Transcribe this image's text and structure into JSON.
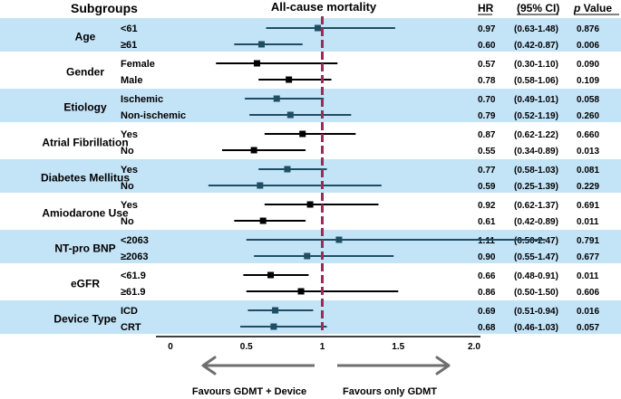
{
  "headers": {
    "subgroups": "Subgroups",
    "title": "All-cause mortality",
    "hr": "HR",
    "ci": "(95% CI)",
    "p_prefix": "p",
    "p_suffix": " Value"
  },
  "footer": {
    "left_label": "Favours  GDMT + Device",
    "right_label": "Favours only GDMT"
  },
  "colors": {
    "band": "#c3e3f7",
    "ink": "#000000",
    "teal": "#1f4e64",
    "reference_line": "#9b2c58",
    "arrow": "#6f6f6f"
  },
  "chart_data": {
    "type": "forest",
    "title": "All-cause mortality",
    "xlim": [
      0,
      2.0
    ],
    "x_ticks": [
      0,
      0.5,
      1,
      1.5,
      2.0
    ],
    "x_tick_labels": [
      "0",
      "0.5",
      "1",
      "1.5",
      "2.0"
    ],
    "reference_value": 1,
    "groups": [
      {
        "name": "Age",
        "shaded": true,
        "rows": [
          {
            "label": "<61",
            "hr": 0.97,
            "lo": 0.63,
            "hi": 1.48,
            "hr_text": "0.97",
            "ci_text": "(0.63-1.48)",
            "p_text": "0.876"
          },
          {
            "label": "≥61",
            "hr": 0.6,
            "lo": 0.42,
            "hi": 0.87,
            "hr_text": "0.60",
            "ci_text": "(0.42-0.87)",
            "p_text": "0.006"
          }
        ]
      },
      {
        "name": "Gender",
        "shaded": false,
        "rows": [
          {
            "label": "Female",
            "hr": 0.57,
            "lo": 0.3,
            "hi": 1.1,
            "hr_text": "0.57",
            "ci_text": "(0.30-1.10)",
            "p_text": "0.090"
          },
          {
            "label": "Male",
            "hr": 0.78,
            "lo": 0.58,
            "hi": 1.06,
            "hr_text": "0.78",
            "ci_text": "(0.58-1.06)",
            "p_text": "0.109"
          }
        ]
      },
      {
        "name": "Etiology",
        "shaded": true,
        "rows": [
          {
            "label": "Ischemic",
            "hr": 0.7,
            "lo": 0.49,
            "hi": 1.01,
            "hr_text": "0.70",
            "ci_text": "(0.49-1.01)",
            "p_text": "0.058"
          },
          {
            "label": "Non-ischemic",
            "hr": 0.79,
            "lo": 0.52,
            "hi": 1.19,
            "hr_text": "0.79",
            "ci_text": "(0.52-1.19)",
            "p_text": "0.260"
          }
        ]
      },
      {
        "name": "Atrial Fibrillation",
        "shaded": false,
        "rows": [
          {
            "label": "Yes",
            "hr": 0.87,
            "lo": 0.62,
            "hi": 1.22,
            "hr_text": "0.87",
            "ci_text": "(0.62-1.22)",
            "p_text": "0.660"
          },
          {
            "label": "No",
            "hr": 0.55,
            "lo": 0.34,
            "hi": 0.89,
            "hr_text": "0.55",
            "ci_text": "(0.34-0.89)",
            "p_text": "0.013"
          }
        ]
      },
      {
        "name": "Diabetes Mellitus",
        "shaded": true,
        "rows": [
          {
            "label": "Yes",
            "hr": 0.77,
            "lo": 0.58,
            "hi": 1.03,
            "hr_text": "0.77",
            "ci_text": "(0.58-1.03)",
            "p_text": "0.081"
          },
          {
            "label": "No",
            "hr": 0.59,
            "lo": 0.25,
            "hi": 1.39,
            "hr_text": "0.59",
            "ci_text": "(0.25-1.39)",
            "p_text": "0.229"
          }
        ]
      },
      {
        "name": "Amiodarone Use",
        "shaded": false,
        "rows": [
          {
            "label": "Yes",
            "hr": 0.92,
            "lo": 0.62,
            "hi": 1.37,
            "hr_text": "0.92",
            "ci_text": "(0.62-1.37)",
            "p_text": "0.691"
          },
          {
            "label": "No",
            "hr": 0.61,
            "lo": 0.42,
            "hi": 0.89,
            "hr_text": "0.61",
            "ci_text": "(0.42-0.89)",
            "p_text": "0.011"
          }
        ]
      },
      {
        "name": "NT-pro BNP",
        "shaded": true,
        "rows": [
          {
            "label": "<2063",
            "hr": 1.11,
            "lo": 0.5,
            "hi": 2.47,
            "hr_text": "1.11",
            "ci_text": "(0.50-2.47)",
            "p_text": "0.791"
          },
          {
            "label": "≥2063",
            "hr": 0.9,
            "lo": 0.55,
            "hi": 1.47,
            "hr_text": "0.90",
            "ci_text": "(0.55-1.47)",
            "p_text": "0.677"
          }
        ]
      },
      {
        "name": "eGFR",
        "shaded": false,
        "rows": [
          {
            "label": "<61.9",
            "hr": 0.66,
            "lo": 0.48,
            "hi": 0.91,
            "hr_text": "0.66",
            "ci_text": "(0.48-0.91)",
            "p_text": "0.011"
          },
          {
            "label": "≥61.9",
            "hr": 0.86,
            "lo": 0.5,
            "hi": 1.5,
            "hr_text": "0.86",
            "ci_text": "(0.50-1.50)",
            "p_text": "0.606"
          }
        ]
      },
      {
        "name": "Device Type",
        "shaded": true,
        "rows": [
          {
            "label": "ICD",
            "hr": 0.69,
            "lo": 0.51,
            "hi": 0.94,
            "hr_text": "0.69",
            "ci_text": "(0.51-0.94)",
            "p_text": "0.016"
          },
          {
            "label": "CRT",
            "hr": 0.68,
            "lo": 0.46,
            "hi": 1.03,
            "hr_text": "0.68",
            "ci_text": "(0.46-1.03)",
            "p_text": "0.057"
          }
        ]
      }
    ]
  }
}
